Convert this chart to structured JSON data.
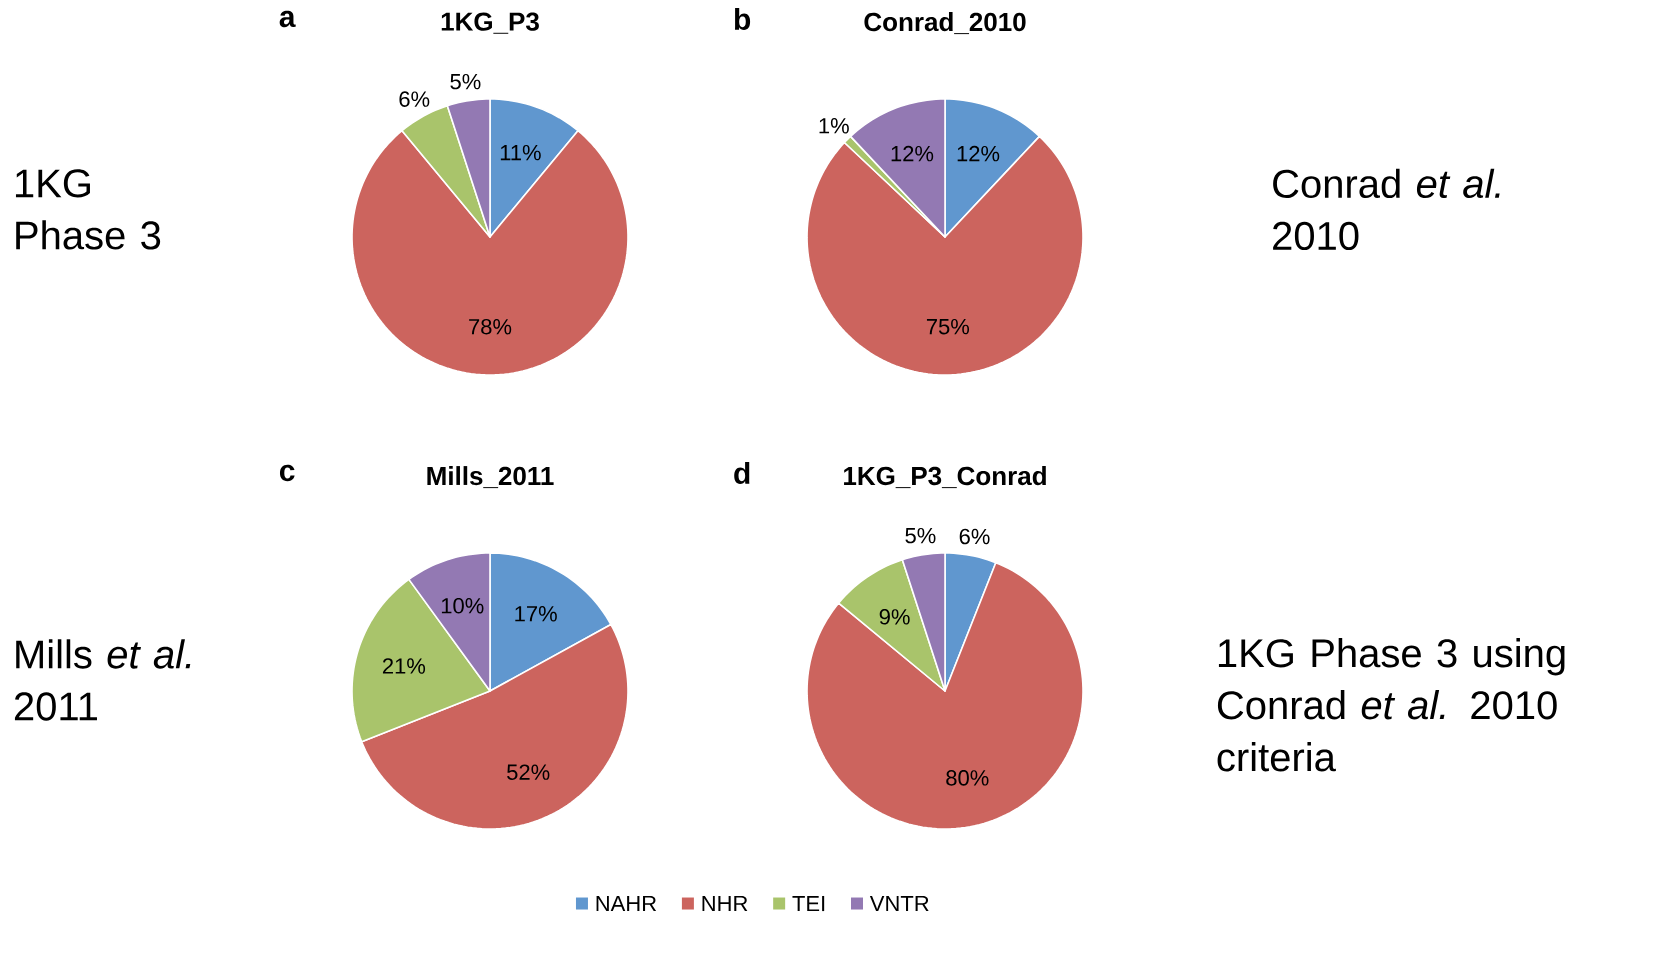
{
  "chart_data": [
    {
      "type": "pie",
      "title": "1KG_P3",
      "values": [
        11,
        78,
        6,
        5
      ],
      "value_labels": [
        "11%",
        "78%",
        "6%",
        "5%"
      ],
      "colors": [
        "#6097cf",
        "#cc645e",
        "#a9c46b",
        "#9379b3"
      ],
      "annotations": [
        "a",
        "1KG Phase 3"
      ]
    },
    {
      "type": "pie",
      "title": "Conrad_2010",
      "values": [
        12,
        75,
        1,
        12
      ],
      "value_labels": [
        "12%",
        "75%",
        "1%",
        "12%"
      ],
      "colors": [
        "#6097cf",
        "#cc645e",
        "#a9c46b",
        "#9379b3"
      ],
      "annotations": [
        "b",
        "Conrad *et al.* 2010"
      ]
    },
    {
      "type": "pie",
      "title": "Mills_2011",
      "categories": [
        "NAHR",
        "NHR",
        "TEI",
        "VNTR"
      ],
      "values": [
        17,
        52,
        21,
        10
      ],
      "value_labels": [
        "17%",
        "52%",
        "21%",
        "10%"
      ],
      "colors": [
        "#6097cf",
        "#cc645e",
        "#a9c46b",
        "#9379b3"
      ],
      "annotations": [
        "c",
        "Mills *et al.* 2011"
      ],
      "legend": "bottom"
    },
    {
      "type": "pie",
      "title": "1KG_P3_Conrad",
      "values": [
        6,
        80,
        9,
        5
      ],
      "value_labels": [
        "6%",
        "80%",
        "9%",
        "5%"
      ],
      "colors": [
        "#6097cf",
        "#cc645e",
        "#a9c46b",
        "#9379b3"
      ],
      "annotations": [
        "d",
        "1KG Phase 3 using Conrad *et al.* 2010 criteria"
      ]
    }
  ]
}
